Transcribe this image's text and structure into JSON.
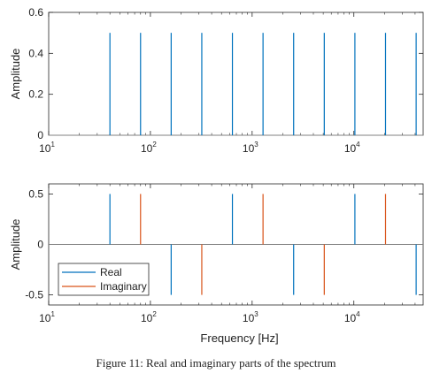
{
  "caption": "Figure 11: Real and imaginary parts of the spectrum",
  "colors": {
    "real": "#0072BD",
    "imaginary": "#D95319",
    "axis": "#262626",
    "zero": "#808080"
  },
  "chart_data": [
    {
      "type": "stem",
      "title": "",
      "xlabel": "",
      "ylabel": "Amplitude",
      "xscale": "log",
      "xlim": [
        10,
        48000
      ],
      "ylim": [
        0,
        0.6
      ],
      "xticks": [
        10,
        100,
        1000,
        10000
      ],
      "xtick_labels": [
        {
          "base": "10",
          "exp": "1"
        },
        {
          "base": "10",
          "exp": "2"
        },
        {
          "base": "10",
          "exp": "3"
        },
        {
          "base": "10",
          "exp": "4"
        }
      ],
      "yticks": [
        0,
        0.2,
        0.4,
        0.6
      ],
      "ytick_labels": [
        "0",
        "0.2",
        "0.4",
        "0.6"
      ],
      "grid": false,
      "series": [
        {
          "color": "#0072BD",
          "x": [
            40,
            80,
            160,
            320,
            640,
            1280,
            2560,
            5120,
            10240,
            20480,
            40960
          ],
          "values": [
            0.5,
            0.5,
            0.5,
            0.5,
            0.5,
            0.5,
            0.5,
            0.5,
            0.5,
            0.5,
            0.5
          ]
        }
      ]
    },
    {
      "type": "stem",
      "title": "",
      "xlabel": "Frequency [Hz]",
      "ylabel": "Amplitude",
      "xscale": "log",
      "xlim": [
        10,
        48000
      ],
      "ylim": [
        -0.6,
        0.6
      ],
      "xticks": [
        10,
        100,
        1000,
        10000
      ],
      "xtick_labels": [
        {
          "base": "10",
          "exp": "1"
        },
        {
          "base": "10",
          "exp": "2"
        },
        {
          "base": "10",
          "exp": "3"
        },
        {
          "base": "10",
          "exp": "4"
        }
      ],
      "yticks": [
        -0.5,
        0,
        0.5
      ],
      "ytick_labels": [
        "-0.5",
        "0",
        "0.5"
      ],
      "grid": false,
      "legend": "bottom-left",
      "series": [
        {
          "name": "Real",
          "color": "#0072BD",
          "x": [
            40,
            160,
            640,
            2560,
            10240,
            40960
          ],
          "values": [
            0.5,
            -0.5,
            0.5,
            -0.5,
            0.5,
            -0.5
          ]
        },
        {
          "name": "Imaginary",
          "color": "#D95319",
          "x": [
            80,
            320,
            1280,
            5120,
            20480
          ],
          "values": [
            0.5,
            -0.5,
            0.5,
            -0.5,
            0.5
          ]
        }
      ]
    }
  ]
}
